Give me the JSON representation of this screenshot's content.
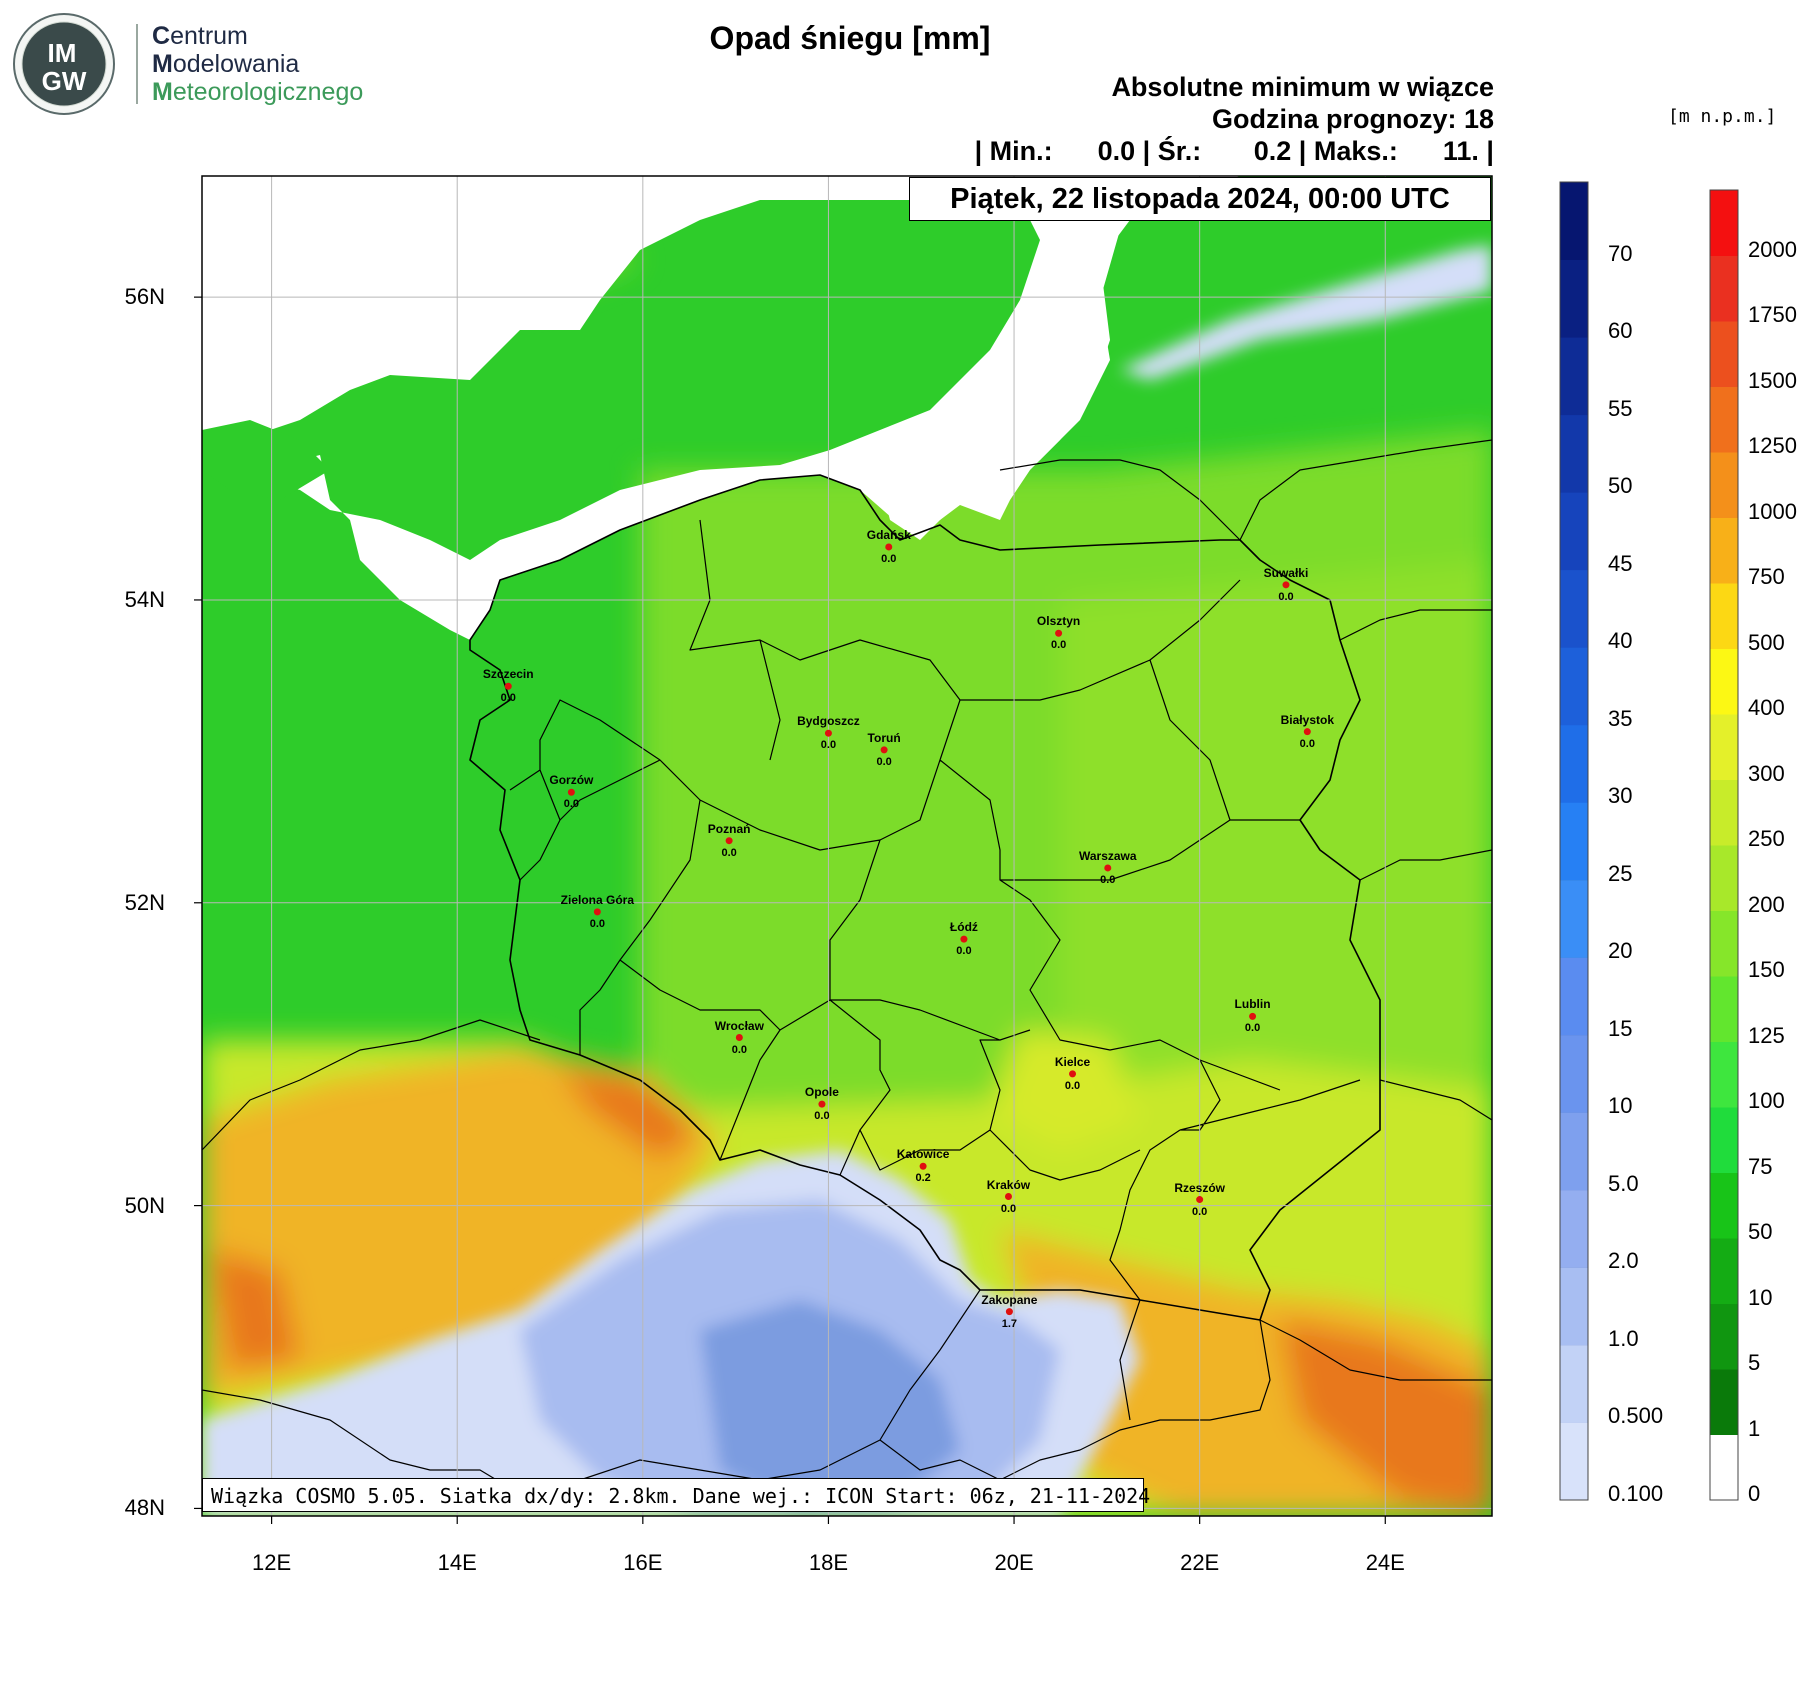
{
  "logo": {
    "badge_top": "IM",
    "badge_bottom": "GW",
    "words": [
      {
        "initial": "C",
        "rest": "entrum"
      },
      {
        "initial": "M",
        "rest": "odelowania"
      },
      {
        "initial": "M",
        "rest": "eteorologicznego"
      }
    ]
  },
  "title": "Opad śniegu [mm]",
  "subtitle": "Absolutne minimum w wiązce",
  "forecast_hour_line": "Godzina prognozy: 18",
  "stats_line": "| Min.:      0.0 | Śr.:       0.2 | Maks.:      11. |",
  "date_line": "Piątek, 22 listopada 2024, 00:00 UTC",
  "model_line": "Wiązka COSMO 5.05. Siatka dx/dy: 2.8km. Dane wej.: ICON Start: 06z, 21-11-2024",
  "units_label": "[m n.p.m.]",
  "map": {
    "lon_range": [
      11.25,
      25.15
    ],
    "lat_range": [
      47.95,
      56.8
    ],
    "lat_ticks": [
      {
        "value": 56,
        "label": "56N"
      },
      {
        "value": 54,
        "label": "54N"
      },
      {
        "value": 52,
        "label": "52N"
      },
      {
        "value": 50,
        "label": "50N"
      },
      {
        "value": 48,
        "label": "48N"
      }
    ],
    "lon_ticks": [
      {
        "value": 12,
        "label": "12E"
      },
      {
        "value": 14,
        "label": "14E"
      },
      {
        "value": 16,
        "label": "16E"
      },
      {
        "value": 18,
        "label": "18E"
      },
      {
        "value": 20,
        "label": "20E"
      },
      {
        "value": 22,
        "label": "22E"
      },
      {
        "value": 24,
        "label": "24E"
      }
    ],
    "colors": {
      "sea": "#ffffff",
      "lowland": "#2ecc2a",
      "plain": "#7cdc2a",
      "upland": "#c8e82a",
      "mountain": "#f0b428",
      "peak": "#e8781e",
      "snow_light": "#d4def8",
      "snow_mid": "#a8bcf0",
      "snow_heavy": "#7c9ce0"
    },
    "cities": [
      {
        "name": "Gdańsk",
        "value": "0.0",
        "lon": 18.65,
        "lat": 54.35
      },
      {
        "name": "Suwałki",
        "value": "0.0",
        "lon": 22.93,
        "lat": 54.1
      },
      {
        "name": "Olsztyn",
        "value": "0.0",
        "lon": 20.48,
        "lat": 53.78
      },
      {
        "name": "Szczecin",
        "value": "0.0",
        "lon": 14.55,
        "lat": 53.43
      },
      {
        "name": "Bydgoszcz",
        "value": "0.0",
        "lon": 18.0,
        "lat": 53.12
      },
      {
        "name": "Toruń",
        "value": "0.0",
        "lon": 18.6,
        "lat": 53.01
      },
      {
        "name": "Białystok",
        "value": "0.0",
        "lon": 23.16,
        "lat": 53.13
      },
      {
        "name": "Gorzów",
        "value": "0.0",
        "lon": 15.23,
        "lat": 52.73
      },
      {
        "name": "Poznań",
        "value": "0.0",
        "lon": 16.93,
        "lat": 52.41
      },
      {
        "name": "Warszawa",
        "value": "0.0",
        "lon": 21.01,
        "lat": 52.23
      },
      {
        "name": "Zielona Góra",
        "value": "0.0",
        "lon": 15.51,
        "lat": 51.94
      },
      {
        "name": "Łódź",
        "value": "0.0",
        "lon": 19.46,
        "lat": 51.76
      },
      {
        "name": "Lublin",
        "value": "0.0",
        "lon": 22.57,
        "lat": 51.25
      },
      {
        "name": "Wrocław",
        "value": "0.0",
        "lon": 17.04,
        "lat": 51.11
      },
      {
        "name": "Kielce",
        "value": "0.0",
        "lon": 20.63,
        "lat": 50.87
      },
      {
        "name": "Opole",
        "value": "0.0",
        "lon": 17.93,
        "lat": 50.67
      },
      {
        "name": "Katowice",
        "value": "0.2",
        "lon": 19.02,
        "lat": 50.26
      },
      {
        "name": "Kraków",
        "value": "0.0",
        "lon": 19.94,
        "lat": 50.06
      },
      {
        "name": "Rzeszów",
        "value": "0.0",
        "lon": 22.0,
        "lat": 50.04
      },
      {
        "name": "Zakopane",
        "value": "1.7",
        "lon": 19.95,
        "lat": 49.3
      }
    ]
  },
  "snow_colorbar": {
    "labels": [
      "0.100",
      "0.500",
      "1.0",
      "2.0",
      "5.0",
      "10",
      "15",
      "20",
      "25",
      "30",
      "35",
      "40",
      "45",
      "50",
      "55",
      "60",
      "70"
    ],
    "colors": [
      "#d8e2fa",
      "#c2d2f6",
      "#a8bef2",
      "#94aef0",
      "#7ea0ee",
      "#6a94ee",
      "#5a8cf0",
      "#3a8ef6",
      "#2680f4",
      "#1f6ee8",
      "#1d60da",
      "#1a52cc",
      "#1644bc",
      "#1238aa",
      "#0e2c96",
      "#0a2082",
      "#061670"
    ]
  },
  "elev_colorbar": {
    "labels": [
      "0",
      "1",
      "5",
      "10",
      "50",
      "75",
      "100",
      "125",
      "150",
      "200",
      "250",
      "300",
      "400",
      "500",
      "750",
      "1000",
      "1250",
      "1500",
      "1750",
      "2000"
    ],
    "colors": [
      "#ffffff",
      "#0a7a0a",
      "#109610",
      "#14ac14",
      "#18c418",
      "#20dc3c",
      "#3ee63e",
      "#62e62e",
      "#86e62a",
      "#a8e82a",
      "#c8ec2a",
      "#e4f02a",
      "#fcf814",
      "#fcd814",
      "#f8b018",
      "#f4901a",
      "#f0701c",
      "#ec501e",
      "#ea3020",
      "#f41010"
    ]
  }
}
